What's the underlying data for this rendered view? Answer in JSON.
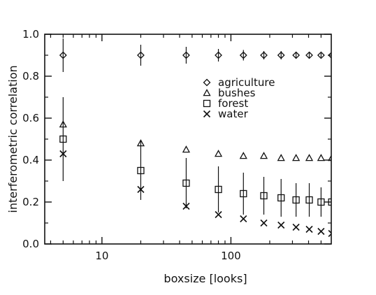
{
  "chart_data": {
    "type": "scatter",
    "xlabel": "boxsize [looks]",
    "ylabel": "interferometric correlation",
    "xscale": "log",
    "xlim": [
      3.6,
      600
    ],
    "ylim": [
      0.0,
      1.0
    ],
    "x_ticks": [
      {
        "value": 10,
        "label": "10"
      },
      {
        "value": 100,
        "label": "100"
      }
    ],
    "y_ticks": [
      {
        "value": 0.0,
        "label": "0.0"
      },
      {
        "value": 0.2,
        "label": "0.2"
      },
      {
        "value": 0.4,
        "label": "0.4"
      },
      {
        "value": 0.6,
        "label": "0.6"
      },
      {
        "value": 0.8,
        "label": "0.8"
      },
      {
        "value": 1.0,
        "label": "1.0"
      }
    ],
    "grid": false,
    "legend_position": "upper-right",
    "series": [
      {
        "name": "agriculture",
        "marker": "diamond",
        "x": [
          5,
          20,
          45,
          80,
          125,
          180,
          245,
          320,
          405,
          500,
          605
        ],
        "y": [
          0.9,
          0.9,
          0.9,
          0.9,
          0.9,
          0.9,
          0.9,
          0.9,
          0.9,
          0.9,
          0.9
        ],
        "err": [
          0.08,
          0.05,
          0.04,
          0.03,
          0.025,
          0.02,
          0.02,
          0.015,
          0.015,
          0.01,
          0.01
        ]
      },
      {
        "name": "bushes",
        "marker": "triangle",
        "x": [
          5,
          20,
          45,
          80,
          125,
          180,
          245,
          320,
          405,
          500,
          605
        ],
        "y": [
          0.57,
          0.48,
          0.45,
          0.43,
          0.42,
          0.42,
          0.41,
          0.41,
          0.41,
          0.41,
          0.41
        ],
        "err": [
          0,
          0,
          0,
          0,
          0,
          0,
          0,
          0,
          0,
          0,
          0
        ]
      },
      {
        "name": "forest",
        "marker": "square",
        "x": [
          5,
          20,
          45,
          80,
          125,
          180,
          245,
          320,
          405,
          500,
          605
        ],
        "y": [
          0.5,
          0.35,
          0.29,
          0.26,
          0.24,
          0.23,
          0.22,
          0.21,
          0.21,
          0.2,
          0.2
        ],
        "err": [
          0.2,
          0.14,
          0.12,
          0.11,
          0.1,
          0.09,
          0.09,
          0.08,
          0.08,
          0.07,
          0.07
        ]
      },
      {
        "name": "water",
        "marker": "cross",
        "x": [
          5,
          20,
          45,
          80,
          125,
          180,
          245,
          320,
          405,
          500,
          605
        ],
        "y": [
          0.43,
          0.26,
          0.18,
          0.14,
          0.12,
          0.1,
          0.09,
          0.08,
          0.07,
          0.06,
          0.05
        ],
        "err": [
          0,
          0,
          0,
          0,
          0,
          0,
          0,
          0,
          0,
          0,
          0
        ]
      }
    ]
  }
}
